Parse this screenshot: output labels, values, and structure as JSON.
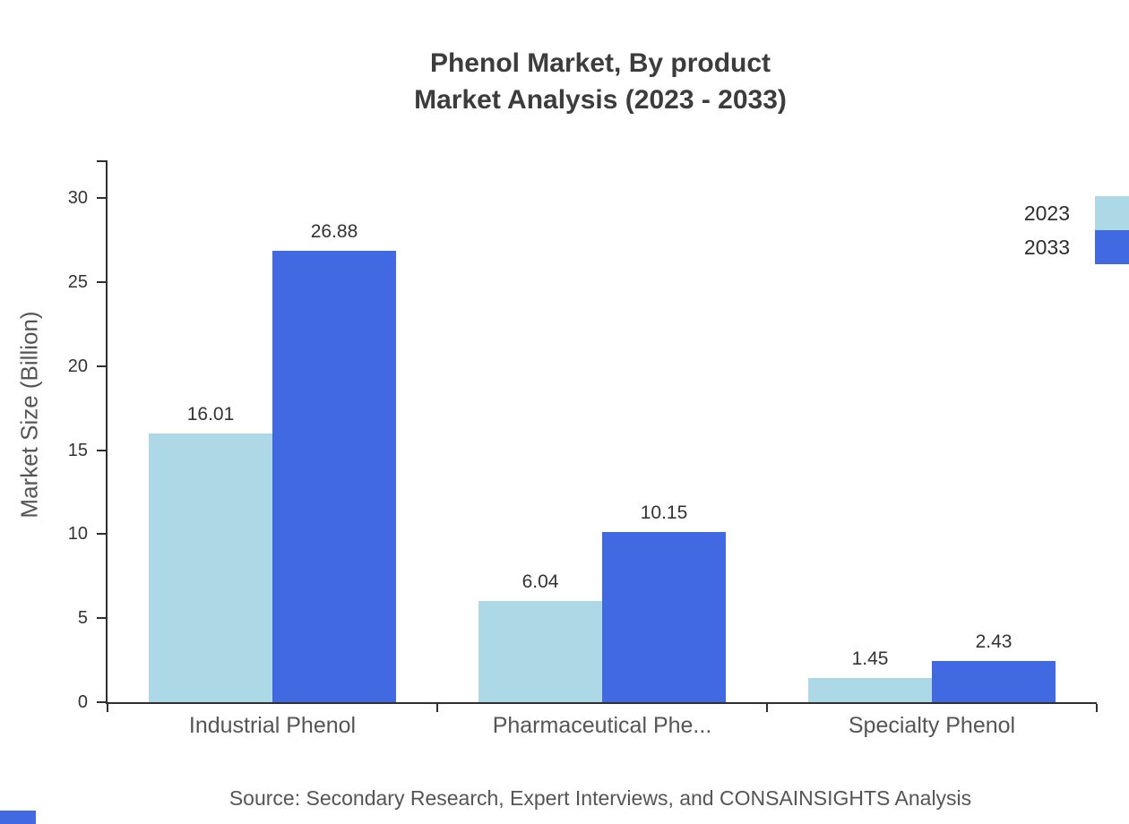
{
  "title": {
    "line1": "Phenol Market, By product",
    "line2": "Market Analysis (2023 - 2033)"
  },
  "chart_data": {
    "type": "bar",
    "title": "Phenol Market, By product Market Analysis (2023 - 2033)",
    "categories": [
      "Industrial Phenol",
      "Pharmaceutical Phe...",
      "Specialty Phenol"
    ],
    "series": [
      {
        "name": "2023",
        "color": "#ADD8E6",
        "values": [
          16.01,
          6.04,
          1.45
        ]
      },
      {
        "name": "2033",
        "color": "#4169E1",
        "values": [
          26.88,
          10.15,
          2.43
        ]
      }
    ],
    "value_label_format": "2-decimals",
    "xlabel": "",
    "ylabel": "Market Size (Billion)",
    "ylim": [
      0,
      30
    ],
    "yticks": [
      0,
      5,
      10,
      15,
      20,
      25,
      30
    ],
    "grid": false,
    "legend_position": "top-right"
  },
  "source_note": "Source: Secondary Research, Expert Interviews, and CONSAINSIGHTS Analysis",
  "colors": {
    "bar_2023": "#ADD8E6",
    "bar_2033": "#4169E1",
    "axis": "#2F2F2F",
    "title_text": "#3C3C3C",
    "label_text": "#555555",
    "value_text": "#333333",
    "accent": "#4169E1"
  }
}
